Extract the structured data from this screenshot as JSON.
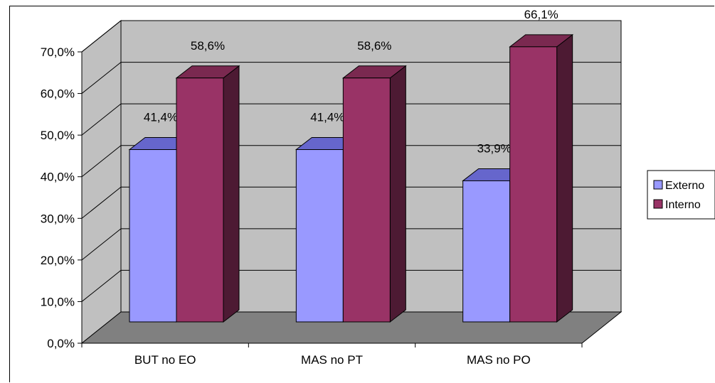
{
  "chart_data": {
    "type": "bar",
    "style": "3d-clustered-column",
    "categories": [
      "BUT no EO",
      "MAS no PT",
      "MAS no PO"
    ],
    "series": [
      {
        "name": "Externo",
        "values": [
          41.4,
          41.4,
          33.9
        ],
        "labels": [
          "41,4%",
          "41,4%",
          "33,9%"
        ],
        "color": "#9999ff",
        "top_color": "#6666cc",
        "side_color": "#333399"
      },
      {
        "name": "Interno",
        "values": [
          58.6,
          58.6,
          66.1
        ],
        "labels": [
          "58,6%",
          "58,6%",
          "66,1%"
        ],
        "color": "#993366",
        "top_color": "#7a2950",
        "side_color": "#4d1a33"
      }
    ],
    "yticks": [
      "0,0%",
      "10,0%",
      "20,0%",
      "30,0%",
      "40,0%",
      "50,0%",
      "60,0%",
      "70,0%"
    ],
    "ylim": [
      0,
      70
    ],
    "grid": true,
    "legend_position": "right",
    "colors": {
      "wall": "#c0c0c0",
      "floor": "#808080",
      "gridline": "#000000"
    }
  }
}
